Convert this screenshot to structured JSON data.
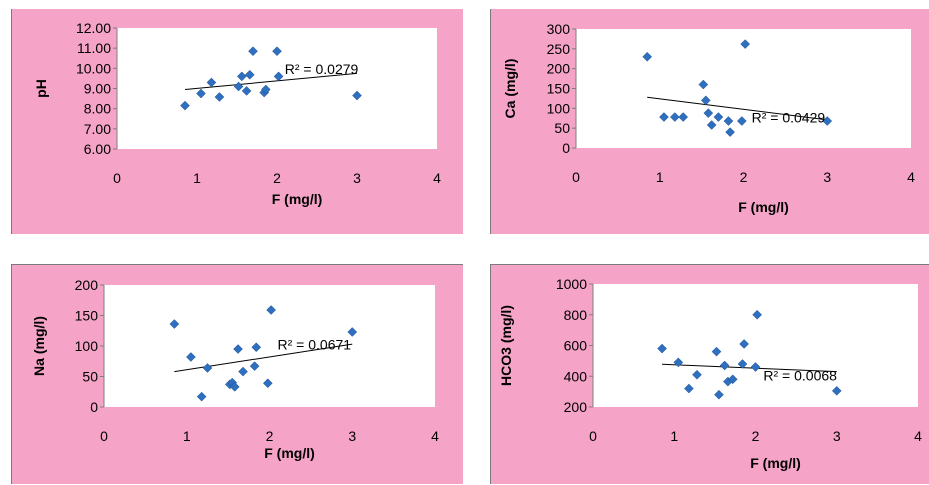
{
  "chart_data": [
    {
      "type": "scatter",
      "title": "",
      "xlabel": "F (mg/l)",
      "ylabel": "pH",
      "xlim": [
        0,
        4
      ],
      "ylim": [
        6,
        12
      ],
      "xticks": [
        "0",
        "1",
        "2",
        "3",
        "4"
      ],
      "yticks": [
        "6.00",
        "7.00",
        "8.00",
        "9.00",
        "10.00",
        "11.00",
        "12.00"
      ],
      "annotation": "R² = 0.0279",
      "trendline": {
        "x": [
          0.85,
          3.0
        ],
        "y": [
          8.95,
          9.75
        ]
      },
      "series": [
        {
          "color": "#2e6fbf",
          "x": [
            0.85,
            1.05,
            1.18,
            1.28,
            1.52,
            1.56,
            1.62,
            1.66,
            1.7,
            1.84,
            1.86,
            2.0,
            2.02,
            3.0
          ],
          "y": [
            8.15,
            8.75,
            9.3,
            8.58,
            9.1,
            9.6,
            8.88,
            9.68,
            10.85,
            8.8,
            8.95,
            10.85,
            9.6,
            8.65
          ]
        }
      ]
    },
    {
      "type": "scatter",
      "title": "",
      "xlabel": "F (mg/l)",
      "ylabel": "Ca (mg/l)",
      "xlim": [
        0,
        4
      ],
      "ylim": [
        0,
        300
      ],
      "xticks": [
        "0",
        "1",
        "2",
        "3",
        "4"
      ],
      "yticks": [
        "0",
        "50",
        "100",
        "150",
        "200",
        "250",
        "300"
      ],
      "annotation": "R² = 0.0429",
      "trendline": {
        "x": [
          0.85,
          3.0
        ],
        "y": [
          128,
          71
        ]
      },
      "series": [
        {
          "color": "#2e6fbf",
          "x": [
            0.85,
            1.05,
            1.18,
            1.28,
            1.52,
            1.55,
            1.58,
            1.62,
            1.7,
            1.82,
            1.84,
            1.98,
            2.02,
            3.0
          ],
          "y": [
            230,
            78,
            78,
            78,
            160,
            120,
            88,
            58,
            78,
            68,
            40,
            68,
            262,
            68
          ]
        }
      ]
    },
    {
      "type": "scatter",
      "title": "",
      "xlabel": "F (mg/l)",
      "ylabel": "Na (mg/l)",
      "xlim": [
        0,
        4
      ],
      "ylim": [
        0,
        200
      ],
      "xticks": [
        "0",
        "1",
        "2",
        "3",
        "4"
      ],
      "yticks": [
        "0",
        "50",
        "100",
        "150",
        "200"
      ],
      "annotation": "R² = 0.0671",
      "trendline": {
        "x": [
          0.85,
          3.0
        ],
        "y": [
          58,
          103
        ]
      },
      "series": [
        {
          "color": "#2e6fbf",
          "x": [
            0.85,
            1.05,
            1.18,
            1.25,
            1.52,
            1.55,
            1.58,
            1.62,
            1.68,
            1.82,
            1.84,
            1.98,
            2.02,
            3.0
          ],
          "y": [
            136,
            82,
            17,
            64,
            37,
            40,
            33,
            95,
            58,
            67,
            98,
            39,
            159,
            123
          ]
        }
      ]
    },
    {
      "type": "scatter",
      "title": "",
      "xlabel": "F (mg/l)",
      "ylabel": "HCO3 (mg/l)",
      "xlim": [
        0,
        4
      ],
      "ylim": [
        200,
        1000
      ],
      "xticks": [
        "0",
        "1",
        "2",
        "3",
        "4"
      ],
      "yticks": [
        "200",
        "400",
        "600",
        "800",
        "1000"
      ],
      "annotation": "R² = 0.0068",
      "trendline": {
        "x": [
          0.85,
          3.0
        ],
        "y": [
          478,
          430
        ]
      },
      "series": [
        {
          "color": "#2e6fbf",
          "x": [
            0.85,
            1.05,
            1.18,
            1.28,
            1.52,
            1.55,
            1.62,
            1.66,
            1.72,
            1.84,
            1.86,
            2.0,
            2.02,
            3.0
          ],
          "y": [
            580,
            490,
            320,
            410,
            560,
            280,
            470,
            365,
            380,
            480,
            610,
            460,
            800,
            305
          ]
        }
      ]
    }
  ]
}
